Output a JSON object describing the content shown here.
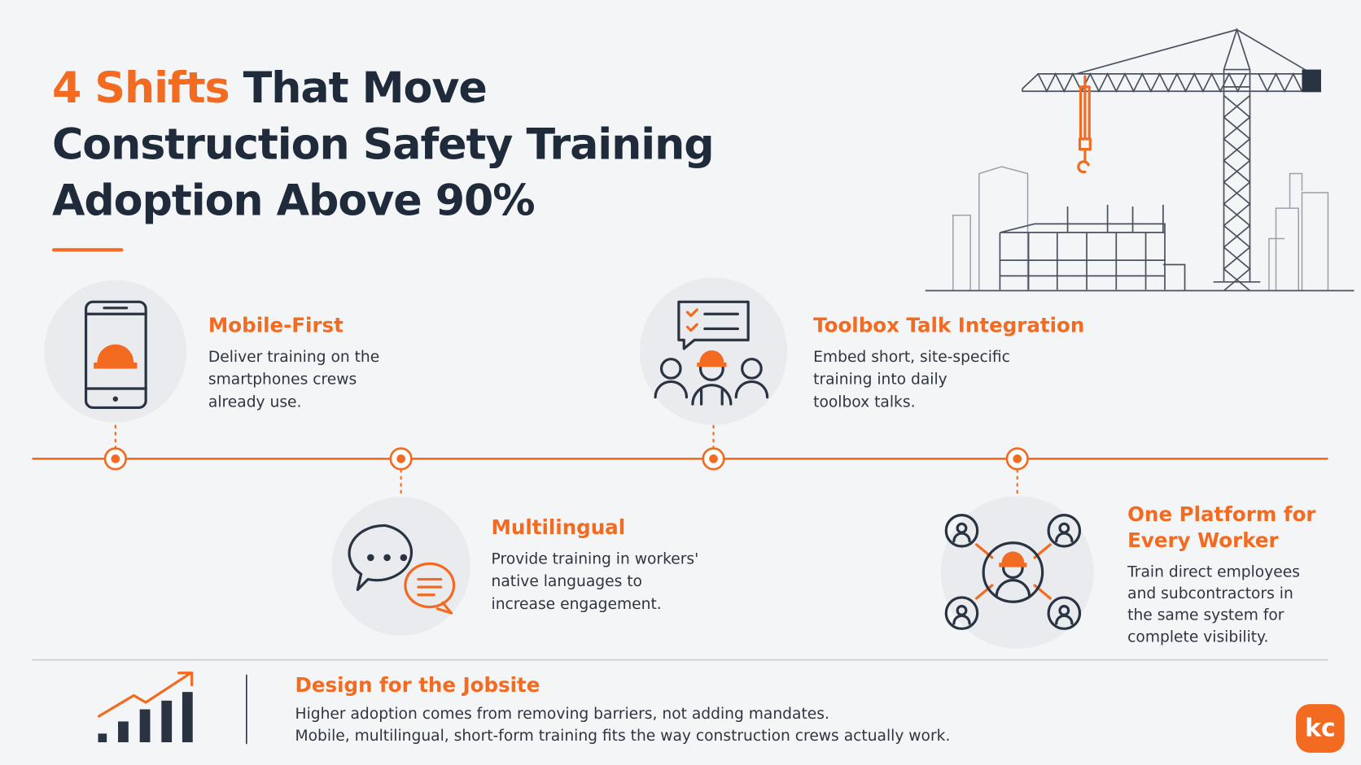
{
  "header": {
    "title_highlight": "4 Shifts",
    "title_rest": "That Move",
    "title_line2": "Construction Safety Training",
    "title_line3": "Adoption Above 90%"
  },
  "shifts": [
    {
      "title_lines": [
        "Mobile-First"
      ],
      "lines": [
        "Deliver training on the",
        "smartphones crews",
        "already use."
      ]
    },
    {
      "title_lines": [
        "Multilingual"
      ],
      "lines": [
        "Provide training in workers'",
        "native languages to",
        "increase engagement."
      ]
    },
    {
      "title_lines": [
        "Toolbox Talk Integration"
      ],
      "lines": [
        "Embed short, site-specific",
        "training into daily",
        "toolbox talks."
      ]
    },
    {
      "title_lines": [
        "One Platform for",
        "Every Worker"
      ],
      "lines": [
        "Train direct employees",
        "and subcontractors in",
        "the same system for",
        "complete visibility."
      ]
    }
  ],
  "footer": {
    "title": "Design for the Jobsite",
    "lines": [
      "Higher adoption comes from removing barriers, not adding mandates.",
      "Mobile, multilingual, short-form training fits the way construction crews actually work."
    ]
  },
  "logo": "kc"
}
